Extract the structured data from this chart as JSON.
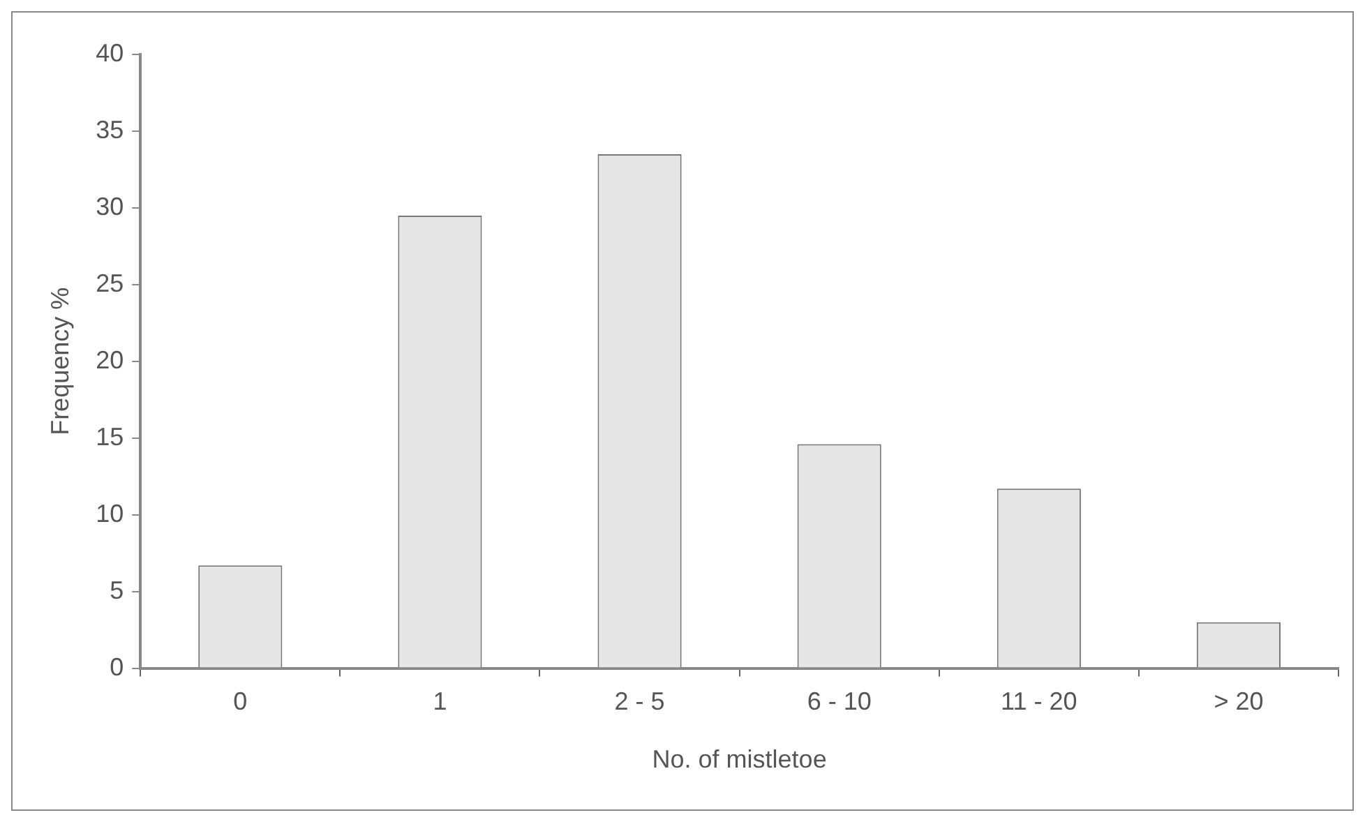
{
  "chart_data": {
    "type": "bar",
    "xlabel": "No. of mistletoe",
    "ylabel": "Frequency %",
    "categories": [
      "0",
      "1",
      "2 - 5",
      "6 - 10",
      "11 - 20",
      "> 20"
    ],
    "values": [
      6.7,
      29.5,
      33.5,
      14.6,
      11.7,
      3.0
    ],
    "color": "#e6e6e6",
    "ylim": [
      0,
      40
    ],
    "yticks": [
      0,
      5,
      10,
      15,
      20,
      25,
      30,
      35,
      40
    ],
    "grid": false,
    "legend": false
  }
}
